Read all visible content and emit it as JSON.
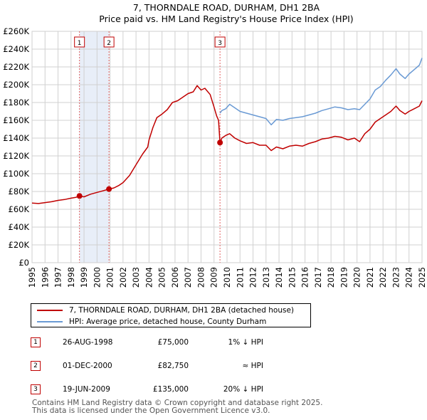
{
  "chart_data": {
    "type": "line",
    "title": "7, THORNDALE ROAD, DURHAM, DH1 2BA",
    "subtitle": "Price paid vs. HM Land Registry's House Price Index (HPI)",
    "xlim": [
      1995,
      2025
    ],
    "ylim": [
      0,
      260000
    ],
    "x_ticks": [
      "1995",
      "1996",
      "1997",
      "1998",
      "1999",
      "2000",
      "2001",
      "2002",
      "2003",
      "2004",
      "2005",
      "2006",
      "2007",
      "2008",
      "2009",
      "2010",
      "2011",
      "2012",
      "2013",
      "2014",
      "2015",
      "2016",
      "2017",
      "2018",
      "2019",
      "2020",
      "2021",
      "2022",
      "2023",
      "2024",
      "2025"
    ],
    "y_ticks": [
      "£0",
      "£20K",
      "£40K",
      "£60K",
      "£80K",
      "£100K",
      "£120K",
      "£140K",
      "£160K",
      "£180K",
      "£200K",
      "£220K",
      "£240K",
      "£260K"
    ],
    "grid": true,
    "series": [
      {
        "name": "7, THORNDALE ROAD, DURHAM, DH1 2BA (detached house)",
        "color": "#c00000",
        "points": [
          [
            1995,
            67000
          ],
          [
            1995.5,
            66500
          ],
          [
            1996,
            67500
          ],
          [
            1996.5,
            68500
          ],
          [
            1997,
            70000
          ],
          [
            1997.5,
            71000
          ],
          [
            1998,
            72500
          ],
          [
            1998.4,
            73500
          ],
          [
            1998.65,
            75000
          ],
          [
            1999,
            74000
          ],
          [
            1999.5,
            77000
          ],
          [
            2000,
            79000
          ],
          [
            2000.5,
            81000
          ],
          [
            2000.92,
            82750
          ],
          [
            2001.3,
            84000
          ],
          [
            2001.7,
            87000
          ],
          [
            2002,
            90000
          ],
          [
            2002.5,
            98000
          ],
          [
            2003,
            110000
          ],
          [
            2003.5,
            122000
          ],
          [
            2003.9,
            130000
          ],
          [
            2004,
            138000
          ],
          [
            2004.3,
            152000
          ],
          [
            2004.6,
            163000
          ],
          [
            2005,
            167000
          ],
          [
            2005.4,
            172000
          ],
          [
            2005.8,
            180000
          ],
          [
            2006.2,
            182000
          ],
          [
            2006.6,
            186000
          ],
          [
            2007,
            190000
          ],
          [
            2007.4,
            192000
          ],
          [
            2007.7,
            199000
          ],
          [
            2008,
            194000
          ],
          [
            2008.3,
            196000
          ],
          [
            2008.7,
            189000
          ],
          [
            2009,
            175000
          ],
          [
            2009.2,
            165000
          ],
          [
            2009.35,
            160000
          ],
          [
            2009.46,
            135000
          ],
          [
            2009.6,
            140000
          ],
          [
            2009.9,
            143000
          ],
          [
            2010.2,
            145000
          ],
          [
            2010.6,
            140000
          ],
          [
            2011,
            137000
          ],
          [
            2011.5,
            134000
          ],
          [
            2012,
            135000
          ],
          [
            2012.5,
            132000
          ],
          [
            2013,
            132000
          ],
          [
            2013.4,
            126000
          ],
          [
            2013.8,
            130000
          ],
          [
            2014.3,
            128000
          ],
          [
            2014.8,
            131000
          ],
          [
            2015.3,
            132000
          ],
          [
            2015.8,
            131000
          ],
          [
            2016.3,
            134000
          ],
          [
            2016.8,
            136000
          ],
          [
            2017.3,
            139000
          ],
          [
            2017.8,
            140000
          ],
          [
            2018.3,
            142000
          ],
          [
            2018.8,
            141000
          ],
          [
            2019.3,
            138000
          ],
          [
            2019.8,
            140000
          ],
          [
            2020.2,
            136000
          ],
          [
            2020.6,
            145000
          ],
          [
            2021,
            150000
          ],
          [
            2021.4,
            158000
          ],
          [
            2021.8,
            162000
          ],
          [
            2022.2,
            166000
          ],
          [
            2022.6,
            170000
          ],
          [
            2023,
            176000
          ],
          [
            2023.3,
            171000
          ],
          [
            2023.7,
            167000
          ],
          [
            2024,
            170000
          ],
          [
            2024.4,
            173000
          ],
          [
            2024.8,
            176000
          ],
          [
            2025,
            182000
          ]
        ]
      },
      {
        "name": "HPI: Average price, detached house, County Durham",
        "color": "#6a9ad4",
        "points": [
          [
            2009.46,
            168000
          ],
          [
            2009.6,
            171000
          ],
          [
            2009.9,
            173000
          ],
          [
            2010.2,
            178000
          ],
          [
            2010.6,
            174000
          ],
          [
            2011,
            170000
          ],
          [
            2011.5,
            168000
          ],
          [
            2012,
            166000
          ],
          [
            2012.5,
            164000
          ],
          [
            2013,
            162000
          ],
          [
            2013.4,
            155000
          ],
          [
            2013.8,
            161000
          ],
          [
            2014.3,
            160000
          ],
          [
            2014.8,
            162000
          ],
          [
            2015.3,
            163000
          ],
          [
            2015.8,
            164000
          ],
          [
            2016.3,
            166000
          ],
          [
            2016.8,
            168000
          ],
          [
            2017.3,
            171000
          ],
          [
            2017.8,
            173000
          ],
          [
            2018.3,
            175000
          ],
          [
            2018.8,
            174000
          ],
          [
            2019.3,
            172000
          ],
          [
            2019.8,
            173000
          ],
          [
            2020.2,
            172000
          ],
          [
            2020.6,
            178000
          ],
          [
            2021,
            184000
          ],
          [
            2021.4,
            194000
          ],
          [
            2021.8,
            198000
          ],
          [
            2022.2,
            205000
          ],
          [
            2022.6,
            211000
          ],
          [
            2023,
            218000
          ],
          [
            2023.3,
            212000
          ],
          [
            2023.7,
            207000
          ],
          [
            2024,
            212000
          ],
          [
            2024.4,
            217000
          ],
          [
            2024.8,
            222000
          ],
          [
            2025,
            230000
          ]
        ]
      }
    ],
    "sale_markers": [
      {
        "label": "1",
        "x": 1998.65,
        "y": 75000
      },
      {
        "label": "2",
        "x": 2000.92,
        "y": 82750
      },
      {
        "label": "3",
        "x": 2009.46,
        "y": 135000
      }
    ],
    "shaded_ranges": [
      [
        1998.65,
        2000.92
      ]
    ]
  },
  "legend": {
    "property": "7, THORNDALE ROAD, DURHAM, DH1 2BA (detached house)",
    "hpi": "HPI: Average price, detached house, County Durham"
  },
  "sales": [
    {
      "num": "1",
      "date": "26-AUG-1998",
      "price": "£75,000",
      "rel": "1% ↓ HPI"
    },
    {
      "num": "2",
      "date": "01-DEC-2000",
      "price": "£82,750",
      "rel": "≈ HPI"
    },
    {
      "num": "3",
      "date": "19-JUN-2009",
      "price": "£135,000",
      "rel": "20% ↓ HPI"
    }
  ],
  "footer": {
    "line1": "Contains HM Land Registry data © Crown copyright and database right 2025.",
    "line2": "This data is licensed under the Open Government Licence v3.0."
  },
  "colors": {
    "property": "#c00000",
    "hpi": "#6a9ad4",
    "grid": "#d0d0d0",
    "shade": "#e8eef8"
  }
}
